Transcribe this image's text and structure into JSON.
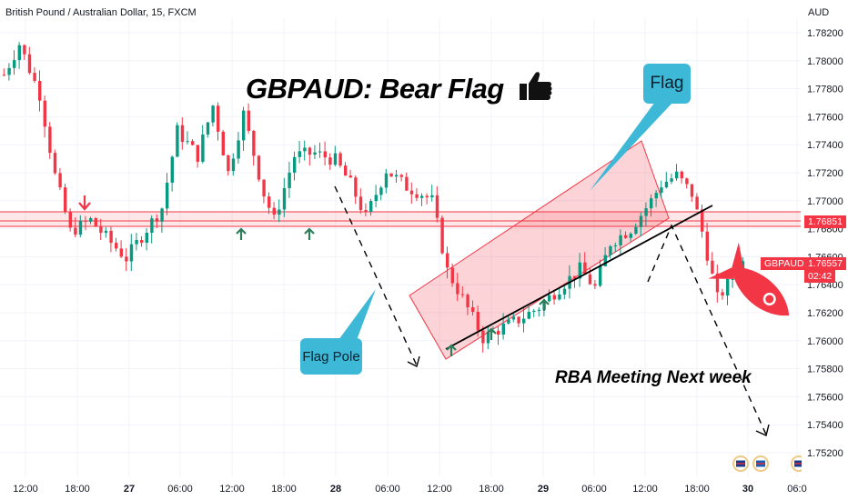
{
  "header": {
    "symbol_title": "British Pound / Australian Dollar, 15, FXCM",
    "currency": "AUD"
  },
  "annotations": {
    "title": "GBPAUD: Bear Flag",
    "flag_label": "Flag",
    "flag_pole_label": "Flag Pole",
    "rba_note": "RBA Meeting Next week",
    "symbol_tag": "GBPAUD",
    "last_price": "1.76557",
    "countdown": "02:42",
    "resistance_price": "1.76851"
  },
  "colors": {
    "bull": "#089981",
    "bear": "#f23645",
    "zone": "#f23645",
    "callout": "#3db8d6",
    "rocket": "#f23645"
  },
  "icons": [
    "thumbs-up-icon",
    "rocket-icon",
    "up-arrow-marker-icon",
    "down-arrow-marker-icon",
    "event-flag-icon"
  ],
  "chart_data": {
    "type": "candlestick",
    "y_axis_label": "AUD",
    "ylim": [
      1.7505,
      1.783
    ],
    "y_ticks": [
      "1.78200",
      "1.78000",
      "1.77800",
      "1.77600",
      "1.77400",
      "1.77200",
      "1.77000",
      "1.76800",
      "1.76600",
      "1.76400",
      "1.76200",
      "1.76000",
      "1.75800",
      "1.75600",
      "1.75400",
      "1.75200"
    ],
    "x_ticks": [
      "12:00",
      "18:00",
      "27",
      "06:00",
      "12:00",
      "18:00",
      "28",
      "06:00",
      "12:00",
      "18:00",
      "29",
      "06:00",
      "12:00",
      "18:00",
      "30",
      "06:0"
    ],
    "bold_x_ticks": [
      "27",
      "28",
      "29",
      "30"
    ],
    "n_bars": 165,
    "price_path": [
      [
        0,
        1.779
      ],
      [
        3,
        1.7812
      ],
      [
        7,
        1.7776
      ],
      [
        10,
        1.7718
      ],
      [
        13,
        1.7678
      ],
      [
        17,
        1.7686
      ],
      [
        21,
        1.767
      ],
      [
        24,
        1.7659
      ],
      [
        28,
        1.768
      ],
      [
        31,
        1.7695
      ],
      [
        34,
        1.775
      ],
      [
        38,
        1.7732
      ],
      [
        41,
        1.7768
      ],
      [
        44,
        1.772
      ],
      [
        47,
        1.7762
      ],
      [
        51,
        1.7705
      ],
      [
        53,
        1.7686
      ],
      [
        57,
        1.7732
      ],
      [
        61,
        1.7734
      ],
      [
        65,
        1.7729
      ],
      [
        68,
        1.7712
      ],
      [
        71,
        1.7688
      ],
      [
        75,
        1.7722
      ],
      [
        79,
        1.771
      ],
      [
        82,
        1.7705
      ],
      [
        84,
        1.77
      ],
      [
        87,
        1.765
      ],
      [
        90,
        1.763
      ],
      [
        94,
        1.7602
      ],
      [
        97,
        1.7608
      ],
      [
        101,
        1.7615
      ],
      [
        105,
        1.7624
      ],
      [
        109,
        1.7638
      ],
      [
        113,
        1.7651
      ],
      [
        116,
        1.7638
      ],
      [
        119,
        1.767
      ],
      [
        123,
        1.768
      ],
      [
        127,
        1.77
      ],
      [
        129,
        1.7712
      ],
      [
        132,
        1.7718
      ],
      [
        135,
        1.7705
      ],
      [
        137,
        1.7678
      ],
      [
        140,
        1.763
      ],
      [
        143,
        1.7645
      ],
      [
        145,
        1.7656
      ]
    ],
    "resistance_zone": [
      1.76838,
      1.7693
    ],
    "resistance_level": 1.76851,
    "last_price": 1.76557
  }
}
